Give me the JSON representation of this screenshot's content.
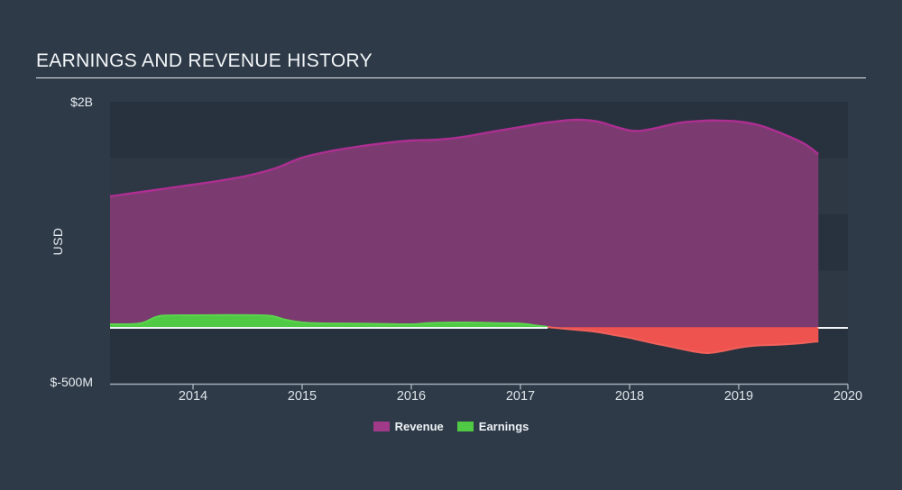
{
  "header": {
    "title": "EARNINGS AND REVENUE HISTORY"
  },
  "chart_data": {
    "type": "area",
    "title": "EARNINGS AND REVENUE HISTORY",
    "ylabel": "USD",
    "xlabel": "",
    "y_top_label": "$2B",
    "y_bottom_label": "$-500M",
    "ylim_m": [
      -500,
      2000
    ],
    "grid_step_m": 500,
    "grid": "horizontal-bands",
    "x_ticks": [
      "2014",
      "2015",
      "2016",
      "2017",
      "2018",
      "2019",
      "2020"
    ],
    "x_tick_years": [
      2014,
      2015,
      2016,
      2017,
      2018,
      2019,
      2020
    ],
    "x_data_range": [
      2013.24,
      2019.73
    ],
    "legend_position": "bottom-center",
    "band_colors": [
      "#28323E",
      "#2D3844"
    ],
    "zero_line_color": "#F2F6F8",
    "axis_color": "#AEBAC4",
    "tick_label_color": "#DDE4E9",
    "series": [
      {
        "name": "Revenue",
        "unit": "USD millions",
        "fill": "#7B3B70",
        "line": "#AE2E92",
        "points": [
          [
            2013.24,
            1160
          ],
          [
            2013.5,
            1196
          ],
          [
            2013.75,
            1230
          ],
          [
            2014,
            1264
          ],
          [
            2014.25,
            1300
          ],
          [
            2014.5,
            1344
          ],
          [
            2014.75,
            1408
          ],
          [
            2015,
            1504
          ],
          [
            2015.25,
            1560
          ],
          [
            2015.5,
            1600
          ],
          [
            2015.75,
            1632
          ],
          [
            2016,
            1656
          ],
          [
            2016.25,
            1664
          ],
          [
            2016.5,
            1692
          ],
          [
            2016.75,
            1736
          ],
          [
            2017,
            1776
          ],
          [
            2017.25,
            1816
          ],
          [
            2017.5,
            1840
          ],
          [
            2017.7,
            1826
          ],
          [
            2017.85,
            1784
          ],
          [
            2018,
            1746
          ],
          [
            2018.1,
            1742
          ],
          [
            2018.25,
            1768
          ],
          [
            2018.45,
            1812
          ],
          [
            2018.65,
            1830
          ],
          [
            2018.8,
            1834
          ],
          [
            2019,
            1824
          ],
          [
            2019.2,
            1788
          ],
          [
            2019.4,
            1716
          ],
          [
            2019.6,
            1628
          ],
          [
            2019.73,
            1536
          ]
        ]
      },
      {
        "name": "Earnings",
        "unit": "USD millions",
        "fill_positive": "#50CA44",
        "line_positive": "#5BD44E",
        "fill_negative": "#EE5350",
        "line_negative": "#F2615B",
        "points": [
          [
            2013.24,
            24
          ],
          [
            2013.45,
            26
          ],
          [
            2013.55,
            40
          ],
          [
            2013.65,
            85
          ],
          [
            2013.75,
            102
          ],
          [
            2014,
            104
          ],
          [
            2014.3,
            106
          ],
          [
            2014.6,
            104
          ],
          [
            2014.72,
            98
          ],
          [
            2014.85,
            64
          ],
          [
            2015,
            40
          ],
          [
            2015.2,
            32
          ],
          [
            2015.5,
            30
          ],
          [
            2015.8,
            26
          ],
          [
            2016,
            24
          ],
          [
            2016.2,
            36
          ],
          [
            2016.5,
            40
          ],
          [
            2016.8,
            34
          ],
          [
            2017,
            30
          ],
          [
            2017.15,
            12
          ],
          [
            2017.3,
            -6
          ],
          [
            2017.5,
            -24
          ],
          [
            2017.7,
            -44
          ],
          [
            2017.85,
            -70
          ],
          [
            2018,
            -96
          ],
          [
            2018.2,
            -140
          ],
          [
            2018.4,
            -180
          ],
          [
            2018.6,
            -220
          ],
          [
            2018.72,
            -232
          ],
          [
            2018.85,
            -214
          ],
          [
            2019,
            -184
          ],
          [
            2019.15,
            -166
          ],
          [
            2019.35,
            -158
          ],
          [
            2019.55,
            -146
          ],
          [
            2019.73,
            -128
          ]
        ]
      }
    ],
    "legend": [
      {
        "label": "Revenue",
        "swatch": "#A23A8A"
      },
      {
        "label": "Earnings",
        "swatch": "#50CA44"
      }
    ]
  }
}
